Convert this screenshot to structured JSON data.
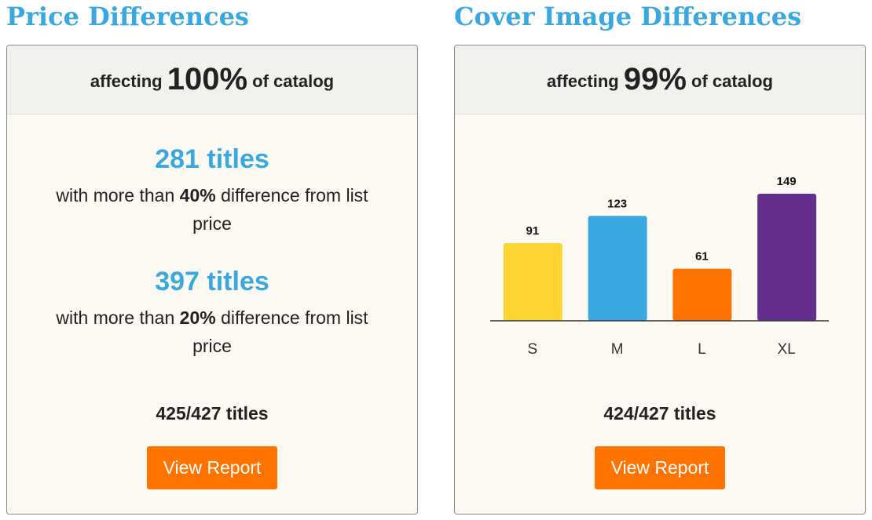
{
  "panels": [
    {
      "title": "Price Differences",
      "header": {
        "prefix": "affecting",
        "value": "100%",
        "suffix": "of catalog"
      },
      "stats": [
        {
          "headline": "281 titles",
          "prefix": "with more than",
          "highlight": "40%",
          "suffix": "difference from list price"
        },
        {
          "headline": "397 titles",
          "prefix": "with more than",
          "highlight": "20%",
          "suffix": "difference from list price"
        }
      ],
      "footer": "425/427 titles",
      "button": "View Report"
    },
    {
      "title": "Cover Image Differences",
      "header": {
        "prefix": "affecting",
        "value": "99%",
        "suffix": "of catalog"
      },
      "footer": "424/427 titles",
      "button": "View Report"
    }
  ],
  "chart_data": {
    "type": "bar",
    "categories": [
      "S",
      "M",
      "L",
      "XL"
    ],
    "values": [
      91,
      123,
      61,
      149
    ],
    "colors": [
      "#fcd535",
      "#3aa8e0",
      "#ff7300",
      "#652d8e"
    ]
  }
}
